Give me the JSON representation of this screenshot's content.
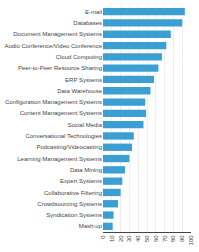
{
  "chart_data": {
    "type": "bar",
    "orientation": "horizontal",
    "categories": [
      "E-mail",
      "Databases",
      "Document Management Systems",
      "Audio Conference/Video Conference",
      "Cloud Computing",
      "Peer-to-Peer Resource Sharing",
      "ERP Systems",
      "Data Warehouse",
      "Configuration Management Systems",
      "Content Management Systems",
      "Social Media",
      "Conversational Technologies",
      "Podcasting/Videocasting",
      "Learning Management Systems",
      "Data Mining",
      "Expert Systems",
      "Collaborative Filtering",
      "Crowdsourcing Systems",
      "Syndication Systems",
      "Mash-up"
    ],
    "values": [
      93,
      90,
      77,
      72,
      67,
      63,
      58,
      54,
      48,
      49,
      46,
      35,
      33,
      30,
      25,
      22,
      20,
      17,
      12,
      11
    ],
    "color": "#3b9fd4",
    "xlim": [
      0,
      100
    ],
    "xticks": [
      0,
      10,
      20,
      30,
      40,
      50,
      60,
      70,
      80,
      90,
      100
    ],
    "grid": true
  }
}
